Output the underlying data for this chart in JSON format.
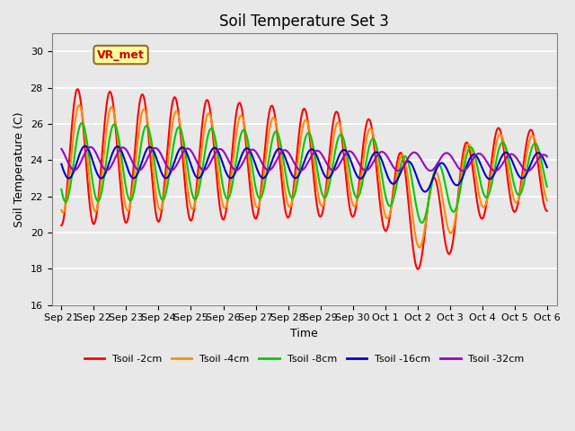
{
  "title": "Soil Temperature Set 3",
  "xlabel": "Time",
  "ylabel": "Soil Temperature (C)",
  "ylim": [
    16,
    31
  ],
  "yticks": [
    16,
    18,
    20,
    22,
    24,
    26,
    28,
    30
  ],
  "annotation_text": "VR_met",
  "annotation_color": "#cc0000",
  "annotation_bg": "#ffff99",
  "annotation_border": "#996633",
  "background_color": "#e8e8e8",
  "plot_bg": "#e8e8e8",
  "series": [
    {
      "label": "Tsoil -2cm",
      "color": "#ff0000",
      "lw": 1.5
    },
    {
      "label": "Tsoil -4cm",
      "color": "#ff8c00",
      "lw": 1.5
    },
    {
      "label": "Tsoil -8cm",
      "color": "#00cc00",
      "lw": 1.5
    },
    {
      "label": "Tsoil -16cm",
      "color": "#0000cc",
      "lw": 1.5
    },
    {
      "label": "Tsoil -32cm",
      "color": "#9900cc",
      "lw": 1.5
    }
  ],
  "x_tick_labels": [
    "Sep 21",
    "Sep 22",
    "Sep 23",
    "Sep 24",
    "Sep 25",
    "Sep 26",
    "Sep 27",
    "Sep 28",
    "Sep 29",
    "Sep 30",
    "Oct 1",
    "Oct 2",
    "Oct 3",
    "Oct 4",
    "Oct 5",
    "Oct 6"
  ],
  "num_days": 15,
  "num_ticks": 16
}
